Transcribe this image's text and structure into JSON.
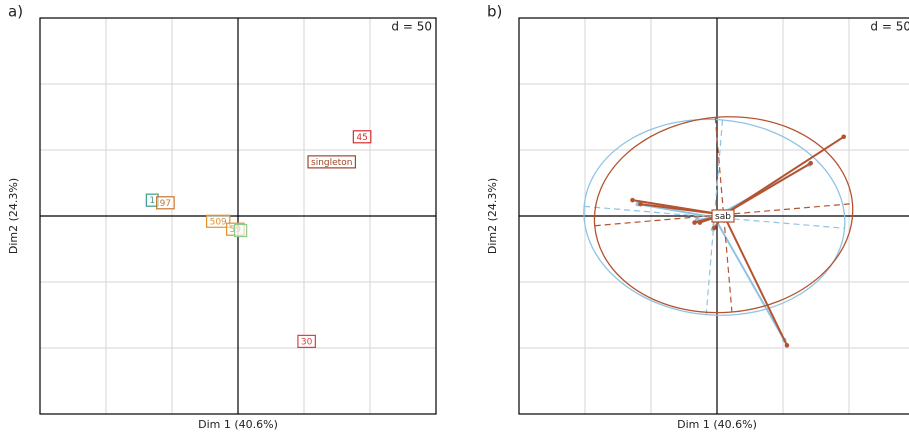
{
  "chart_data": [
    {
      "type": "scatter",
      "panel": "a)",
      "xlabel": "Dim 1 (40.6%)",
      "ylabel": "Dim2 (24.3%)",
      "annotation": "d = 50",
      "xlim": [
        -150,
        150
      ],
      "ylim": [
        -150,
        150
      ],
      "xticks": [
        -100,
        -50,
        0,
        50,
        100
      ],
      "yticks": [
        -100,
        -50,
        0,
        50,
        100
      ],
      "grid": true,
      "labels": [
        "45",
        "singleton",
        "1",
        "97",
        "509",
        "59",
        null,
        "30"
      ],
      "x": [
        94,
        71,
        -65,
        -55,
        -15,
        -2,
        2,
        52
      ],
      "y": [
        60,
        41,
        12,
        10,
        -4,
        -10,
        -11,
        -95
      ],
      "colors": [
        "#d62d2d",
        "#a0462a",
        "#3a9c86",
        "#c8742a",
        "#e0922e",
        "#e0922e",
        "#8cc98a",
        "#e04040"
      ]
    },
    {
      "type": "star",
      "panel": "b)",
      "xlabel": "Dim 1 (40.6%)",
      "ylabel": "Dim2 (24.3%)",
      "annotation": "d = 50",
      "label": "sab",
      "xlim": [
        -150,
        150
      ],
      "ylim": [
        -150,
        150
      ],
      "xticks": [
        -100,
        -50,
        0,
        50,
        100
      ],
      "yticks": [
        -100,
        -50,
        0,
        50,
        100
      ],
      "grid": true,
      "groups": [
        {
          "color": "#8fc3e4",
          "center": [
            -2,
            -1
          ],
          "radii": [
            99,
            74
          ],
          "angle": -4.8,
          "x": [
            70,
            51,
            -60,
            -3,
            -15
          ],
          "y": [
            39,
            -94,
            9,
            -10,
            -3
          ]
        },
        {
          "color": "#b5532f",
          "center": [
            5,
            1
          ],
          "radii": [
            98,
            74
          ],
          "angle": 4.9,
          "x": [
            96,
            71,
            -64,
            -58,
            53,
            -17,
            -13,
            -2
          ],
          "y": [
            60,
            40,
            12,
            9,
            -98,
            -5,
            -5,
            -9
          ]
        }
      ]
    }
  ]
}
